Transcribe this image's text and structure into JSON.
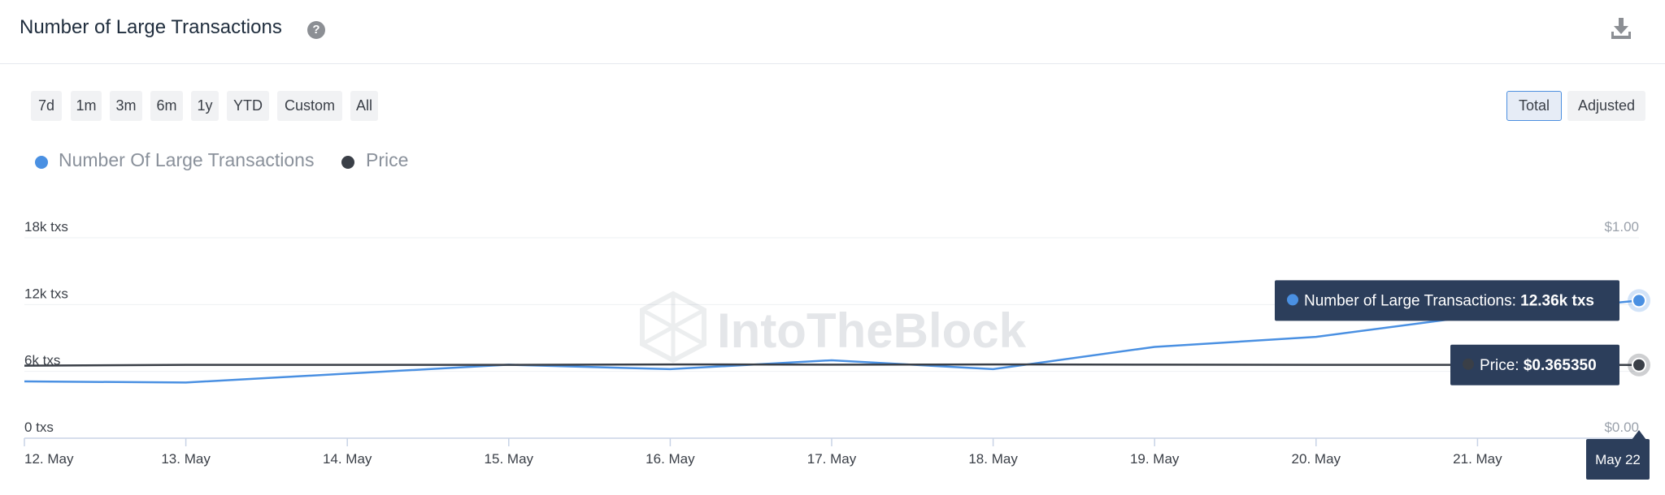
{
  "header": {
    "title": "Number of Large Transactions",
    "help_icon": "question-circle-icon",
    "download_icon": "download-icon"
  },
  "range_buttons": [
    "7d",
    "1m",
    "3m",
    "6m",
    "1y",
    "YTD",
    "Custom",
    "All"
  ],
  "mode_buttons": {
    "total": "Total",
    "adjusted": "Adjusted",
    "active": "Total"
  },
  "legend": [
    {
      "label": "Number Of Large Transactions",
      "color": "#4a90e2"
    },
    {
      "label": "Price",
      "color": "#3a3f47"
    }
  ],
  "watermark": "IntoTheBlock",
  "tooltip": {
    "txs_label": "Number of Large Transactions:",
    "txs_value": "12.36k txs",
    "price_label": "Price:",
    "price_value": "$0.365350",
    "date": "May 22"
  },
  "chart_data": {
    "type": "line",
    "categories": [
      "12. May",
      "13. May",
      "14. May",
      "15. May",
      "16. May",
      "17. May",
      "18. May",
      "19. May",
      "20. May",
      "21. May",
      "May 22"
    ],
    "y_left_ticks": [
      "0 txs",
      "6k txs",
      "12k txs",
      "18k txs"
    ],
    "y_right_ticks": [
      "$0.00",
      "$1.00"
    ],
    "y_left_range": [
      0,
      18000
    ],
    "y_right_range": [
      0,
      1
    ],
    "series": [
      {
        "name": "Number Of Large Transactions",
        "axis": "left",
        "color": "#4a90e2",
        "values": [
          5100,
          5000,
          5800,
          6600,
          6200,
          7000,
          6200,
          8200,
          9100,
          11000,
          12360
        ]
      },
      {
        "name": "Price",
        "axis": "right",
        "color": "#3a3f47",
        "values": [
          0.362,
          0.366,
          0.366,
          0.366,
          0.368,
          0.367,
          0.368,
          0.367,
          0.366,
          0.366,
          0.36535
        ]
      }
    ]
  }
}
